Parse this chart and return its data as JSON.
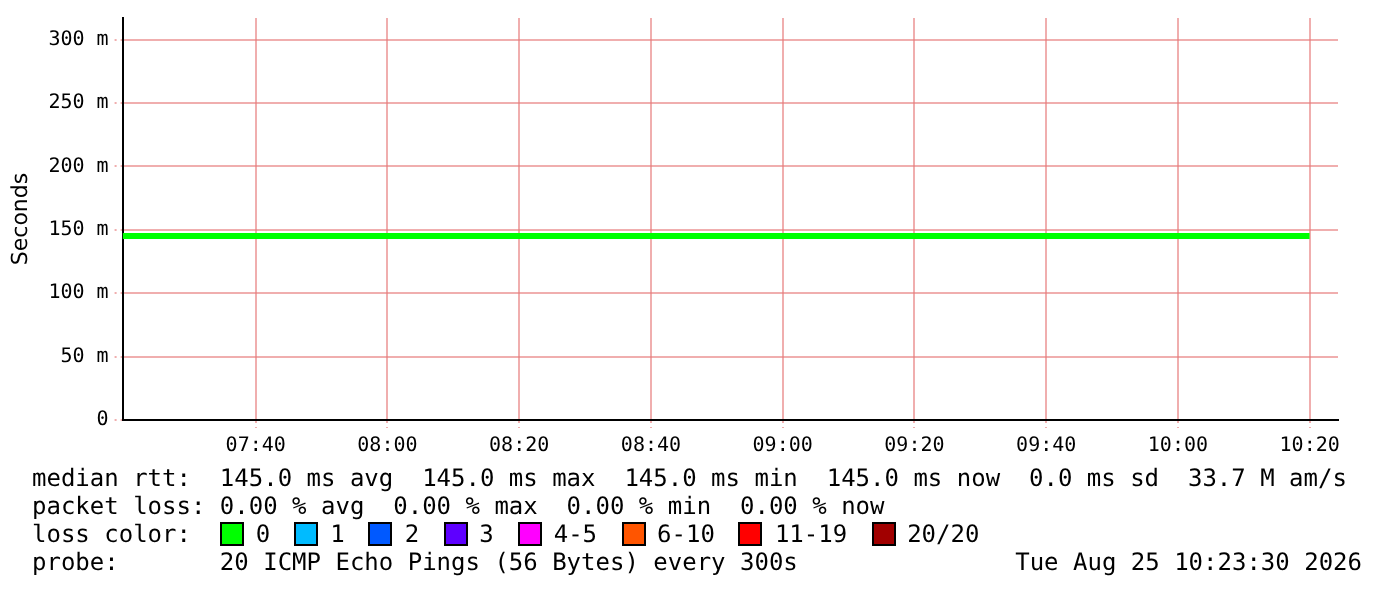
{
  "chart_data": {
    "type": "line",
    "ylabel": "Seconds",
    "legend_title": "loss color:",
    "legend": "bottom",
    "grid": true,
    "marker": "none",
    "line_style": "solid",
    "x": [
      7.33,
      10.333
    ],
    "xlim": [
      7.33,
      10.405
    ],
    "xticks": [
      {
        "value": 7.6667,
        "label": "07:40"
      },
      {
        "value": 8,
        "label": "08:00"
      },
      {
        "value": 8.3333,
        "label": "08:20"
      },
      {
        "value": 8.6667,
        "label": "08:40"
      },
      {
        "value": 9,
        "label": "09:00"
      },
      {
        "value": 9.3333,
        "label": "09:20"
      },
      {
        "value": 9.6667,
        "label": "09:40"
      },
      {
        "value": 10,
        "label": "10:00"
      },
      {
        "value": 10.3333,
        "label": "10:20"
      }
    ],
    "ylim": [
      0,
      317
    ],
    "yticks": [
      0,
      {
        "value": 50,
        "label": "50 m"
      },
      {
        "value": 100,
        "label": "100 m"
      },
      {
        "value": 150,
        "label": "150 m"
      },
      {
        "value": 200,
        "label": "200 m"
      },
      {
        "value": 250,
        "label": "250 m"
      },
      {
        "value": 300,
        "label": "300 m"
      }
    ],
    "series": [
      {
        "name": "0",
        "color": "#00ff00",
        "values": [
          145,
          145
        ]
      },
      {
        "name": "1",
        "color": "#00bbff",
        "values": [
          null,
          null
        ]
      },
      {
        "name": "2",
        "color": "#0059ff",
        "values": [
          null,
          null
        ]
      },
      {
        "name": "3",
        "color": "#5e00ff",
        "values": [
          null,
          null
        ]
      },
      {
        "name": "4-5",
        "color": "#ff00ff",
        "values": [
          null,
          null
        ]
      },
      {
        "name": "6-10",
        "color": "#ff5500",
        "values": [
          null,
          null
        ]
      },
      {
        "name": "11-19",
        "color": "#ff0000",
        "values": [
          null,
          null
        ]
      },
      {
        "name": "20/20",
        "color": "#a10000",
        "values": [
          null,
          null
        ]
      }
    ],
    "annotations": [
      "median rtt:  145.0 ms avg  145.0 ms max  145.0 ms min  145.0 ms now  0.0 ms sd  33.7 M am/s",
      "packet loss: 0.00 % avg  0.00 % max  0.00 % min  0.00 % now",
      "probe:       20 ICMP Echo Pings (56 Bytes) every 300s",
      "Tue Aug 25 10:23:30 2026"
    ]
  }
}
